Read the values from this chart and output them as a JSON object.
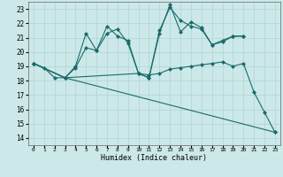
{
  "title": "",
  "xlabel": "Humidex (Indice chaleur)",
  "ylabel": "",
  "xlim": [
    -0.5,
    23.5
  ],
  "ylim": [
    13.5,
    23.5
  ],
  "xticks": [
    0,
    1,
    2,
    3,
    4,
    5,
    6,
    7,
    8,
    9,
    10,
    11,
    12,
    13,
    14,
    15,
    16,
    17,
    18,
    19,
    20,
    21,
    22,
    23
  ],
  "yticks": [
    14,
    15,
    16,
    17,
    18,
    19,
    20,
    21,
    22,
    23
  ],
  "bg_color": "#cce8e8",
  "line_color": "#1a6b6b",
  "grid_color": "#aed4d4",
  "lines": [
    {
      "x": [
        0,
        1,
        2,
        3,
        4,
        5,
        6,
        7,
        8,
        9,
        10,
        11,
        12,
        13,
        14,
        15,
        16,
        17,
        18,
        19,
        20
      ],
      "y": [
        19.2,
        18.9,
        18.2,
        18.2,
        18.9,
        20.3,
        20.1,
        21.3,
        21.6,
        20.6,
        18.5,
        18.2,
        21.3,
        23.3,
        21.4,
        22.1,
        21.7,
        20.5,
        20.7,
        21.1,
        21.1
      ]
    },
    {
      "x": [
        0,
        3,
        4,
        5,
        6,
        7,
        8,
        9,
        10,
        11,
        12,
        13,
        14,
        15,
        16,
        17,
        18,
        19,
        20
      ],
      "y": [
        19.2,
        18.2,
        19.0,
        21.3,
        20.1,
        21.8,
        21.1,
        20.8,
        18.5,
        18.2,
        21.5,
        23.1,
        22.2,
        21.8,
        21.6,
        20.5,
        20.8,
        21.1,
        21.1
      ]
    },
    {
      "x": [
        0,
        3,
        10,
        11,
        12,
        13,
        14,
        15,
        16,
        17,
        18,
        19,
        20,
        21,
        22,
        23
      ],
      "y": [
        19.2,
        18.2,
        18.5,
        18.4,
        18.5,
        18.8,
        18.9,
        19.0,
        19.1,
        19.2,
        19.3,
        19.0,
        19.2,
        17.2,
        15.8,
        14.4
      ]
    },
    {
      "x": [
        0,
        3,
        23
      ],
      "y": [
        19.2,
        18.2,
        14.4
      ]
    }
  ]
}
